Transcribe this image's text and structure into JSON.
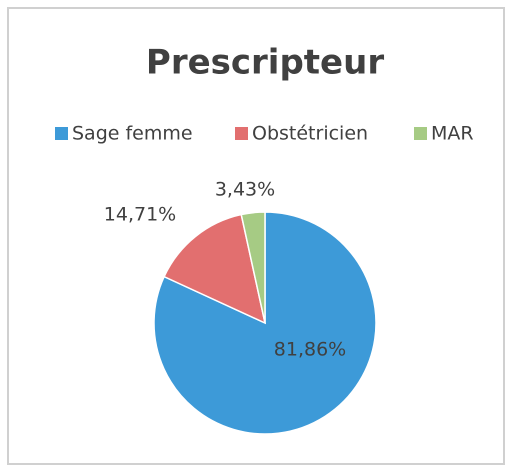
{
  "chart_data": {
    "type": "pie",
    "title": "Prescripteur",
    "categories": [
      "Sage femme",
      "Obstétricien",
      "MAR"
    ],
    "values": [
      81.86,
      14.71,
      3.43
    ],
    "value_labels": [
      "81,86%",
      "14,71%",
      "3,43%"
    ],
    "colors": [
      "#3d9ad8",
      "#e26f6f",
      "#a6cb84"
    ],
    "legend": "top"
  }
}
